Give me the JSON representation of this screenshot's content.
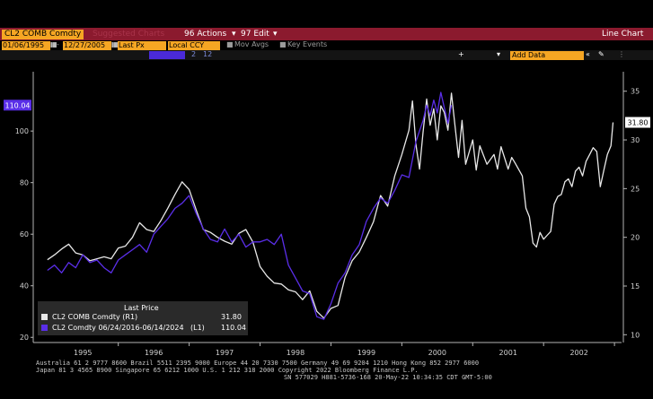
{
  "toolbar": {
    "security": "CL2 COMB Comdty",
    "menu_hidden": "Suggested Charts",
    "actions_label": "96 Actions",
    "edit_label": "97 Edit",
    "chart_type": "Line Chart",
    "start_date": "01/06/1995",
    "end_date": "12/27/2005",
    "field": "Last Px",
    "currency": "Local CCY",
    "mov_avg": "Mov Avgs",
    "key_events": "Key Events",
    "add_data": "Add Data",
    "num_a": "2",
    "num_b": "12"
  },
  "legend": {
    "title": "Last Price",
    "row1_label": "CL2 COMB Comdty  (R1)",
    "row1_value": "31.80",
    "row2_label": "CL2 Comdty 06/24/2016-06/14/2024",
    "row2_tag": "(L1)",
    "row2_value": "110.04"
  },
  "footer": {
    "line1": "Australia 61 2 9777 8600 Brazil 5511 2395 9000 Europe 44 20 7330 7500 Germany 49 69 9204 1210 Hong Kong 852 2977 6000",
    "line2": "Japan 81 3 4565 8900          Singapore 65 6212 1000          U.S. 1 212 318 2000          Copyright 2022 Bloomberg Finance L.P.",
    "line3": "SN 577029 H881-5736-168 20-May-22 10:34:35 CDT  GMT-5:00"
  },
  "colors": {
    "white_series": "#e8e8e8",
    "purple_series": "#5a2ee8",
    "toolbar_red": "#8b1a2e",
    "amber": "#f6a623"
  },
  "chart_data": {
    "type": "line",
    "x_ticks": [
      "1995",
      "1996",
      "1997",
      "1998",
      "1999",
      "2000",
      "2001",
      "2002"
    ],
    "left_axis": {
      "ticks": [
        20,
        40,
        60,
        80,
        100
      ],
      "ylim": [
        18,
        123
      ],
      "last_value": "110.04"
    },
    "right_axis": {
      "ticks": [
        10,
        15,
        20,
        25,
        30,
        35
      ],
      "ylim": [
        9.2,
        37
      ],
      "last_value": "31.80"
    },
    "grid": false,
    "legend_position": "bottom-left",
    "series": [
      {
        "name": "CL2 COMB Comdty (R1)",
        "axis": "right",
        "points": [
          [
            1995.0,
            17.7
          ],
          [
            1995.1,
            18.2
          ],
          [
            1995.2,
            18.8
          ],
          [
            1995.3,
            19.3
          ],
          [
            1995.4,
            18.4
          ],
          [
            1995.5,
            18.2
          ],
          [
            1995.6,
            17.6
          ],
          [
            1995.7,
            17.8
          ],
          [
            1995.8,
            18.0
          ],
          [
            1995.9,
            17.8
          ],
          [
            1996.0,
            18.9
          ],
          [
            1996.1,
            19.1
          ],
          [
            1996.2,
            20.0
          ],
          [
            1996.3,
            21.5
          ],
          [
            1996.4,
            20.8
          ],
          [
            1996.5,
            20.6
          ],
          [
            1996.6,
            21.7
          ],
          [
            1996.7,
            23.0
          ],
          [
            1996.8,
            24.4
          ],
          [
            1996.9,
            25.7
          ],
          [
            1997.0,
            24.9
          ],
          [
            1997.1,
            22.8
          ],
          [
            1997.2,
            20.8
          ],
          [
            1997.3,
            20.5
          ],
          [
            1997.4,
            20.0
          ],
          [
            1997.5,
            19.6
          ],
          [
            1997.6,
            19.3
          ],
          [
            1997.7,
            20.4
          ],
          [
            1997.8,
            20.8
          ],
          [
            1997.9,
            19.5
          ],
          [
            1998.0,
            17.0
          ],
          [
            1998.1,
            16.0
          ],
          [
            1998.2,
            15.3
          ],
          [
            1998.3,
            15.2
          ],
          [
            1998.4,
            14.6
          ],
          [
            1998.5,
            14.4
          ],
          [
            1998.6,
            13.6
          ],
          [
            1998.7,
            14.5
          ],
          [
            1998.8,
            12.4
          ],
          [
            1998.9,
            11.7
          ],
          [
            1999.0,
            12.7
          ],
          [
            1999.1,
            13.0
          ],
          [
            1999.2,
            15.9
          ],
          [
            1999.3,
            17.6
          ],
          [
            1999.4,
            18.5
          ],
          [
            1999.5,
            20.0
          ],
          [
            1999.6,
            21.6
          ],
          [
            1999.7,
            24.3
          ],
          [
            1999.8,
            23.2
          ],
          [
            1999.9,
            26.3
          ],
          [
            2000.0,
            28.5
          ],
          [
            2000.1,
            31.0
          ],
          [
            2000.15,
            34.0
          ],
          [
            2000.2,
            29.5
          ],
          [
            2000.25,
            27.0
          ],
          [
            2000.3,
            30.8
          ],
          [
            2000.35,
            34.2
          ],
          [
            2000.4,
            31.5
          ],
          [
            2000.45,
            33.2
          ],
          [
            2000.5,
            30.0
          ],
          [
            2000.55,
            33.5
          ],
          [
            2000.6,
            32.8
          ],
          [
            2000.65,
            31.0
          ],
          [
            2000.7,
            34.8
          ],
          [
            2000.75,
            31.5
          ],
          [
            2000.8,
            28.2
          ],
          [
            2000.85,
            32.0
          ],
          [
            2000.9,
            27.5
          ],
          [
            2001.0,
            30.0
          ],
          [
            2001.05,
            26.9
          ],
          [
            2001.1,
            29.4
          ],
          [
            2001.2,
            27.5
          ],
          [
            2001.3,
            28.5
          ],
          [
            2001.35,
            27.0
          ],
          [
            2001.4,
            29.3
          ],
          [
            2001.5,
            27.0
          ],
          [
            2001.55,
            28.2
          ],
          [
            2001.6,
            27.6
          ],
          [
            2001.7,
            26.3
          ],
          [
            2001.75,
            23.0
          ],
          [
            2001.8,
            22.1
          ],
          [
            2001.85,
            19.4
          ],
          [
            2001.9,
            19.0
          ],
          [
            2001.95,
            20.5
          ],
          [
            2002.0,
            19.8
          ],
          [
            2002.05,
            20.2
          ],
          [
            2002.1,
            20.6
          ],
          [
            2002.15,
            23.4
          ],
          [
            2002.2,
            24.2
          ],
          [
            2002.25,
            24.4
          ],
          [
            2002.3,
            25.7
          ],
          [
            2002.35,
            26.0
          ],
          [
            2002.4,
            25.2
          ],
          [
            2002.45,
            26.8
          ],
          [
            2002.5,
            27.2
          ],
          [
            2002.55,
            26.3
          ],
          [
            2002.6,
            27.8
          ],
          [
            2002.65,
            28.5
          ],
          [
            2002.7,
            29.2
          ],
          [
            2002.75,
            28.8
          ],
          [
            2002.8,
            25.2
          ],
          [
            2002.85,
            26.9
          ],
          [
            2002.9,
            28.5
          ],
          [
            2002.95,
            29.4
          ],
          [
            2002.98,
            31.8
          ]
        ]
      },
      {
        "name": "CL2 Comdty 06/24/2016-06/14/2024 (L1)",
        "axis": "left",
        "points": [
          [
            1995.0,
            46
          ],
          [
            1995.1,
            48
          ],
          [
            1995.2,
            45
          ],
          [
            1995.3,
            49
          ],
          [
            1995.4,
            47
          ],
          [
            1995.5,
            52
          ],
          [
            1995.6,
            49
          ],
          [
            1995.7,
            50
          ],
          [
            1995.8,
            47
          ],
          [
            1995.9,
            45
          ],
          [
            1996.0,
            50
          ],
          [
            1996.1,
            52
          ],
          [
            1996.2,
            54
          ],
          [
            1996.3,
            56
          ],
          [
            1996.4,
            53
          ],
          [
            1996.5,
            60
          ],
          [
            1996.6,
            63
          ],
          [
            1996.7,
            66
          ],
          [
            1996.8,
            70
          ],
          [
            1996.9,
            72
          ],
          [
            1997.0,
            75
          ],
          [
            1997.1,
            68
          ],
          [
            1997.2,
            62
          ],
          [
            1997.3,
            58
          ],
          [
            1997.4,
            57
          ],
          [
            1997.5,
            62
          ],
          [
            1997.6,
            57
          ],
          [
            1997.7,
            60
          ],
          [
            1997.8,
            55
          ],
          [
            1997.9,
            57
          ],
          [
            1998.0,
            57
          ],
          [
            1998.1,
            58
          ],
          [
            1998.2,
            56
          ],
          [
            1998.3,
            60
          ],
          [
            1998.4,
            48
          ],
          [
            1998.5,
            43
          ],
          [
            1998.6,
            38
          ],
          [
            1998.7,
            37
          ],
          [
            1998.8,
            28
          ],
          [
            1998.9,
            27
          ],
          [
            1999.0,
            33
          ],
          [
            1999.1,
            41
          ],
          [
            1999.2,
            45
          ],
          [
            1999.3,
            52
          ],
          [
            1999.4,
            56
          ],
          [
            1999.5,
            65
          ],
          [
            1999.6,
            70
          ],
          [
            1999.7,
            74
          ],
          [
            1999.8,
            72
          ],
          [
            1999.9,
            77
          ],
          [
            2000.0,
            83
          ],
          [
            2000.1,
            82
          ],
          [
            2000.2,
            96
          ],
          [
            2000.3,
            104
          ],
          [
            2000.35,
            110
          ],
          [
            2000.4,
            106
          ],
          [
            2000.45,
            112
          ],
          [
            2000.5,
            107
          ],
          [
            2000.55,
            115
          ],
          [
            2000.6,
            109
          ],
          [
            2000.65,
            103
          ],
          [
            2000.7,
            110.04
          ]
        ]
      }
    ]
  }
}
